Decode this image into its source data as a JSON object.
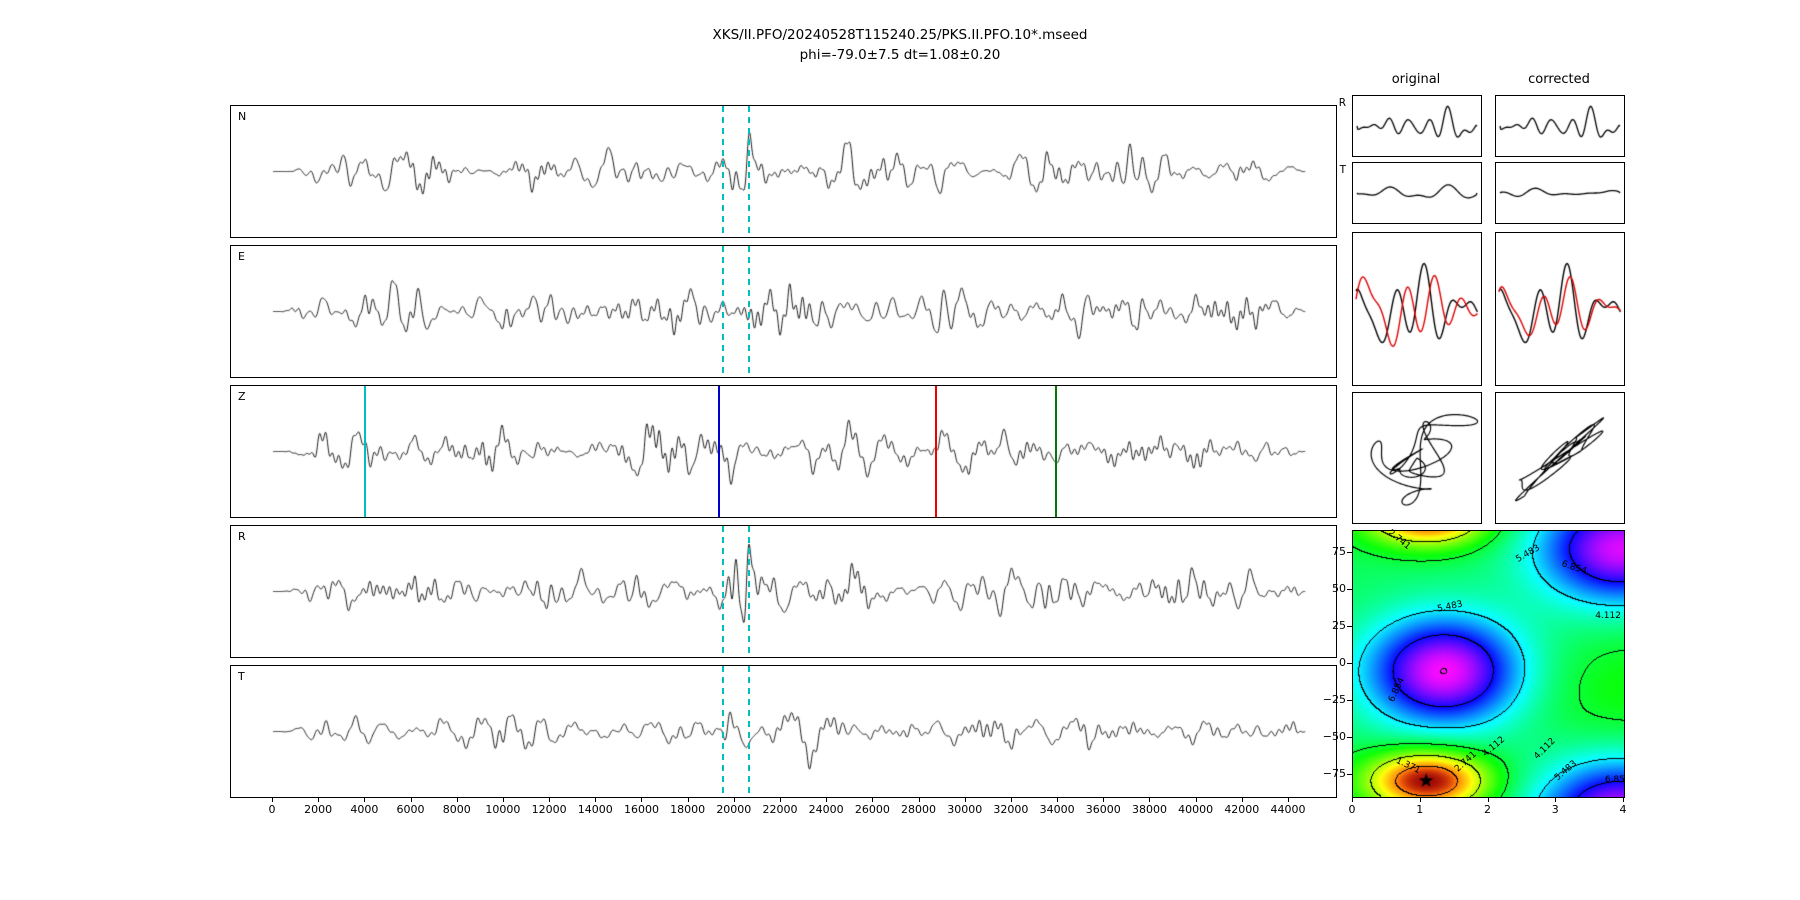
{
  "figure": {
    "title": "XKS/II.PFO/20240528T115240.25/PKS.II.PFO.10*.mseed",
    "subtitle": "phi=-79.0±7.5 dt=1.08±0.20",
    "background": "#ffffff",
    "trace_color": "#000000"
  },
  "comparison": {
    "col_headers": [
      "original",
      "corrected"
    ],
    "row_labels": [
      "R",
      "T"
    ],
    "overlay_colors": [
      "#000000",
      "#dd0000"
    ],
    "small": {
      "R_orig": {
        "seed": 101,
        "amp": 21,
        "smooth": false
      },
      "R_corr": {
        "seed": 101,
        "amp": 21,
        "smooth": false
      },
      "T_orig": {
        "seed": 113,
        "amp": 9,
        "smooth": false
      },
      "T_corr": {
        "seed": 131,
        "amp": 5,
        "smooth": true
      }
    },
    "overlay": {
      "orig": {
        "seed": 151,
        "shift": 9,
        "mix": 0.32
      },
      "corr": {
        "seed": 151,
        "shift": 3,
        "mix": 0.14
      }
    },
    "particle": {
      "orig": {
        "seed": 171,
        "mode": "elliptical"
      },
      "corr": {
        "seed": 177,
        "mode": "linear"
      }
    }
  },
  "chart_data": [
    {
      "type": "line",
      "name": "seismic waveform panels",
      "title": "XKS/II.PFO/20240528T115240.25/PKS.II.PFO.10*.mseed",
      "subtitle": "phi=-79.0±7.5 dt=1.08±0.20",
      "waveform_kind": "band-limited seismic noise with energy burst near sample 20000 (values not individually readable at this scale)",
      "panels": [
        {
          "label": "N",
          "seed": 11,
          "amp": 22,
          "spiky": false,
          "window_lines": true
        },
        {
          "label": "E",
          "seed": 23,
          "amp": 24,
          "spiky": false,
          "window_lines": true
        },
        {
          "label": "Z",
          "seed": 37,
          "amp": 22,
          "spiky": true,
          "window_lines": false
        },
        {
          "label": "R",
          "seed": 47,
          "amp": 22,
          "spiky": false,
          "window_lines": true
        },
        {
          "label": "T",
          "seed": 59,
          "amp": 19,
          "spiky": false,
          "window_lines": true
        }
      ],
      "xlim": [
        0,
        46000
      ],
      "xticks": [
        0,
        2000,
        4000,
        6000,
        8000,
        10000,
        12000,
        14000,
        16000,
        18000,
        20000,
        22000,
        24000,
        26000,
        28000,
        30000,
        32000,
        34000,
        36000,
        38000,
        40000,
        42000,
        44000
      ],
      "burst_center": 20400,
      "window": {
        "start": 19500,
        "end": 20600,
        "color": "#00bfbf",
        "style": "dashed"
      },
      "z_markers": [
        {
          "x": 4000,
          "color": "#00bfbf"
        },
        {
          "x": 19300,
          "color": "#0000cc"
        },
        {
          "x": 28700,
          "color": "#ee0000"
        },
        {
          "x": 33900,
          "color": "#007a00"
        }
      ]
    },
    {
      "type": "heatmap",
      "name": "splitting error surface",
      "colormap": "hsv",
      "xlim": [
        0,
        4
      ],
      "ylim": [
        -90,
        90
      ],
      "xticks": [
        0,
        1,
        2,
        3,
        4
      ],
      "yticks": [
        75,
        50,
        25,
        0,
        -25,
        -50,
        -75
      ],
      "ytick_labels": [
        "75",
        "50",
        "25",
        "0",
        "−25",
        "−50",
        "−75"
      ],
      "contour_levels": [
        1.371,
        2.741,
        4.112,
        5.483,
        6.854
      ],
      "level_step": 1.3708,
      "best_fit": {
        "dt": 1.08,
        "phi": -79.0,
        "marker": "star"
      },
      "field": {
        "base": 4.35,
        "frange": [
          0.35,
          8.25
        ],
        "bumps": [
          {
            "x": 1.1,
            "y": -79,
            "amp": -4.0,
            "sx": 0.62,
            "sy": 14
          },
          {
            "x": 1.35,
            "y": -5,
            "amp": 3.9,
            "sx": 0.8,
            "sy": 26
          },
          {
            "x": 3.95,
            "y": 78,
            "amp": 3.7,
            "sx": 0.85,
            "sy": 26
          },
          {
            "x": 4.2,
            "y": -18,
            "amp": -0.55,
            "sx": 1.1,
            "sy": 30
          }
        ]
      },
      "contour_labels": [
        {
          "text": "2.741",
          "x": 0.7,
          "y": 83,
          "rot": 38
        },
        {
          "text": "5.483",
          "x": 2.6,
          "y": 74,
          "rot": -30
        },
        {
          "text": "6.854",
          "x": 3.28,
          "y": 64,
          "rot": 18
        },
        {
          "text": "4.112",
          "x": 3.78,
          "y": 32,
          "rot": 0
        },
        {
          "text": "5.483",
          "x": 1.45,
          "y": 38,
          "rot": -12
        },
        {
          "text": "6.854",
          "x": 0.66,
          "y": -18,
          "rot": -65
        },
        {
          "text": "4.112",
          "x": 2.1,
          "y": -57,
          "rot": -40
        },
        {
          "text": "1.371",
          "x": 0.82,
          "y": -70,
          "rot": 25
        },
        {
          "text": "2.741",
          "x": 1.68,
          "y": -67,
          "rot": -42
        },
        {
          "text": "4.112",
          "x": 2.85,
          "y": -58,
          "rot": -45
        },
        {
          "text": "5.483",
          "x": 3.16,
          "y": -73,
          "rot": -40
        },
        {
          "text": "6.85",
          "x": 3.88,
          "y": -79,
          "rot": 0
        }
      ]
    }
  ]
}
